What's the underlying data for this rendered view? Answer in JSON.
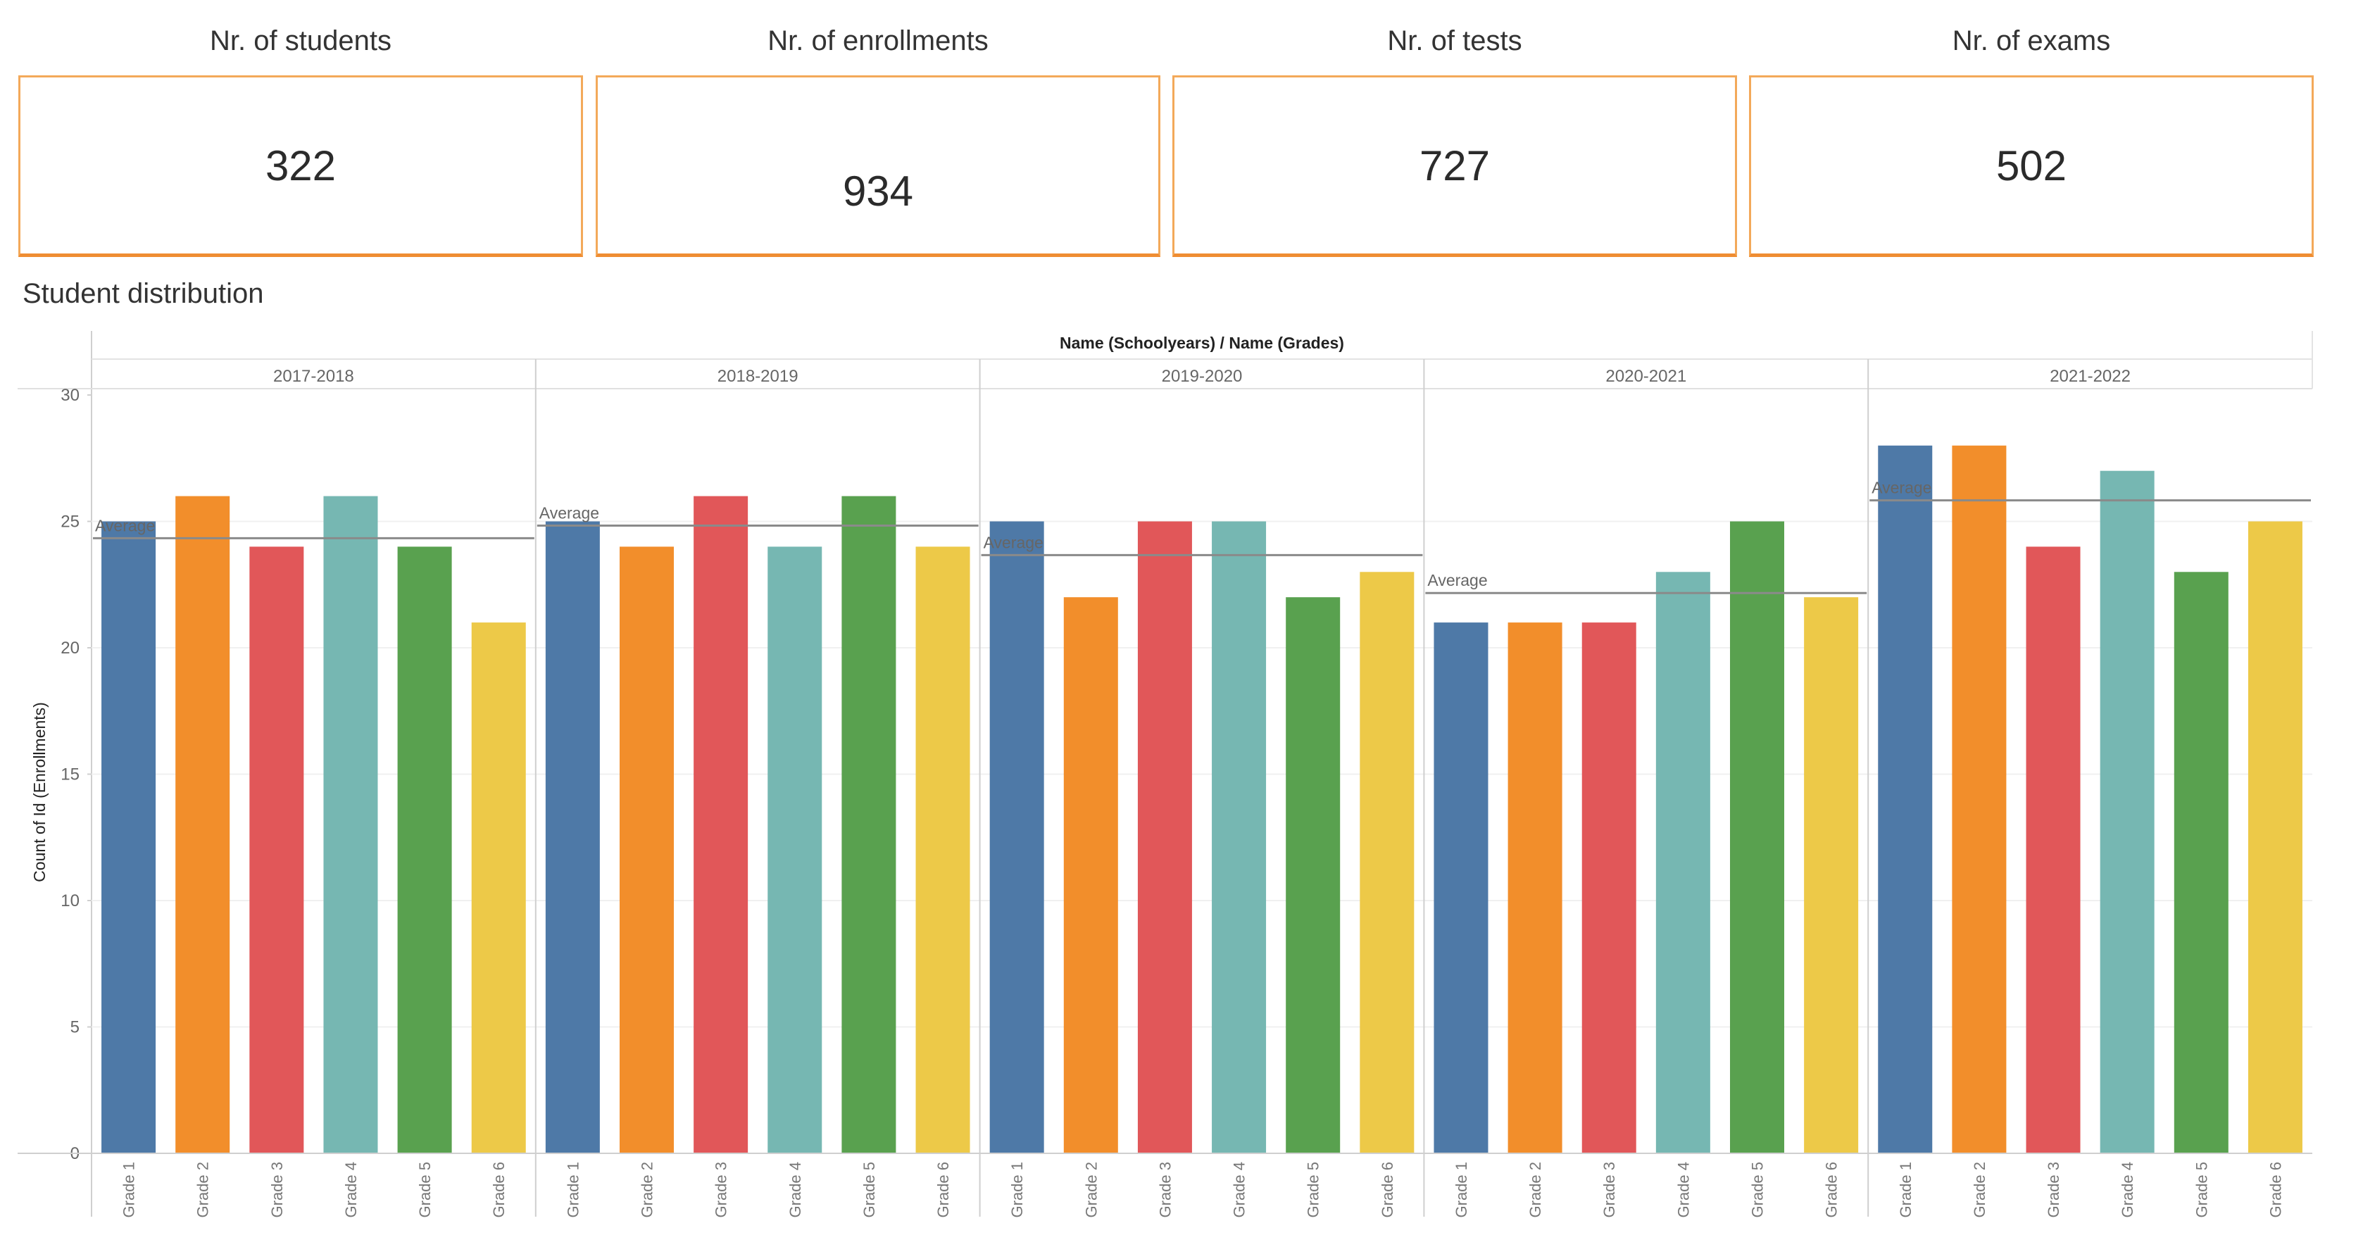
{
  "kpis": [
    {
      "title": "Nr. of students",
      "value": "322"
    },
    {
      "title": "Nr. of enrollments",
      "value": "934"
    },
    {
      "title": "Nr. of tests",
      "value": "727"
    },
    {
      "title": "Nr. of exams",
      "value": "502"
    }
  ],
  "section_title": "Student distribution",
  "colors": {
    "accent": "#ef8d32",
    "Grade 1": "#4e79a7",
    "Grade 2": "#f28e2b",
    "Grade 3": "#e15759",
    "Grade 4": "#76b7b2",
    "Grade 5": "#59a14f",
    "Grade 6": "#edc948"
  },
  "chart_data": {
    "type": "bar",
    "title": "Name (Schoolyears)  /  Name (Grades)",
    "ylabel": "Count of Id (Enrollments)",
    "ylim": [
      0,
      30
    ],
    "yticks": [
      0,
      5,
      10,
      15,
      20,
      25,
      30
    ],
    "grid": true,
    "reference_line_label": "Average",
    "groups": [
      "2017-2018",
      "2018-2019",
      "2019-2020",
      "2020-2021",
      "2021-2022"
    ],
    "categories": [
      "Grade 1",
      "Grade 2",
      "Grade 3",
      "Grade 4",
      "Grade 5",
      "Grade 6"
    ],
    "values": [
      [
        25,
        26,
        24,
        26,
        24,
        21
      ],
      [
        25,
        24,
        26,
        24,
        26,
        24
      ],
      [
        25,
        22,
        25,
        25,
        22,
        23
      ],
      [
        21,
        21,
        21,
        23,
        25,
        22
      ],
      [
        28,
        28,
        24,
        27,
        23,
        25
      ]
    ]
  }
}
